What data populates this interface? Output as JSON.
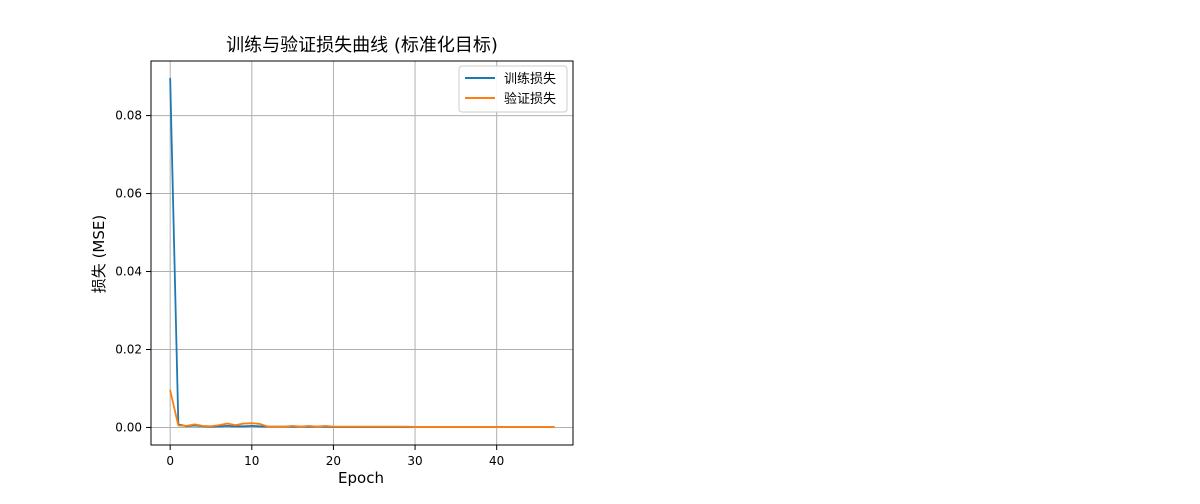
{
  "chart_data": {
    "type": "line",
    "title": "训练与验证损失曲线 (标准化目标)",
    "xlabel": "Epoch",
    "ylabel": "损失 (MSE)",
    "xlim": [
      -2.35,
      49.35
    ],
    "ylim": [
      -0.0045,
      0.094
    ],
    "xticks": [
      0,
      10,
      20,
      30,
      40
    ],
    "yticks": [
      0.0,
      0.02,
      0.04,
      0.06,
      0.08
    ],
    "ytick_labels": [
      "0.00",
      "0.02",
      "0.04",
      "0.06",
      "0.08"
    ],
    "grid": true,
    "legend_position": "top-right",
    "series": [
      {
        "name": "训练损失",
        "color": "#1f77b4",
        "x": [
          0,
          1,
          2,
          3,
          4,
          5,
          6,
          7,
          8,
          9,
          10,
          11,
          12,
          13,
          14,
          15,
          16,
          17,
          18,
          19,
          20,
          21,
          22,
          23,
          24,
          25,
          26,
          27,
          28,
          29,
          30,
          31,
          32,
          33,
          34,
          35,
          36,
          37,
          38,
          39,
          40,
          41,
          42,
          43,
          44,
          45,
          46,
          47
        ],
        "y": [
          0.0895,
          0.0008,
          0.0003,
          0.0005,
          0.0003,
          0.0002,
          0.0003,
          0.0004,
          0.0003,
          0.0003,
          0.0004,
          0.0003,
          0.0002,
          0.0002,
          0.0002,
          0.0002,
          0.0002,
          0.0002,
          0.0002,
          0.0002,
          0.0001,
          0.0001,
          0.0001,
          0.0001,
          0.0001,
          0.0001,
          0.0001,
          0.0001,
          0.0001,
          0.0001,
          0.0001,
          0.0001,
          0.0001,
          0.0001,
          0.0001,
          0.0001,
          0.0001,
          0.0001,
          0.0001,
          0.0001,
          0.0001,
          0.0001,
          0.0001,
          0.0001,
          0.0001,
          0.0001,
          0.0001,
          0.0001
        ]
      },
      {
        "name": "验证损失",
        "color": "#ff7f0e",
        "x": [
          0,
          1,
          2,
          3,
          4,
          5,
          6,
          7,
          8,
          9,
          10,
          11,
          12,
          13,
          14,
          15,
          16,
          17,
          18,
          19,
          20,
          21,
          22,
          23,
          24,
          25,
          26,
          27,
          28,
          29,
          30,
          31,
          32,
          33,
          34,
          35,
          36,
          37,
          38,
          39,
          40,
          41,
          42,
          43,
          44,
          45,
          46,
          47
        ],
        "y": [
          0.0095,
          0.0005,
          0.0004,
          0.0008,
          0.0004,
          0.0003,
          0.0006,
          0.001,
          0.0006,
          0.001,
          0.0011,
          0.0009,
          0.0002,
          0.0002,
          0.0002,
          0.0004,
          0.0002,
          0.0004,
          0.0002,
          0.0004,
          0.0002,
          0.0002,
          0.0002,
          0.0002,
          0.0002,
          0.0002,
          0.0002,
          0.0002,
          0.0002,
          0.0002,
          0.0001,
          0.0001,
          0.0001,
          0.0001,
          0.0001,
          0.0001,
          0.0001,
          0.0001,
          0.0001,
          0.0001,
          0.0001,
          0.0001,
          0.0001,
          0.0001,
          0.0001,
          0.0001,
          0.0001,
          0.0001
        ]
      }
    ]
  }
}
